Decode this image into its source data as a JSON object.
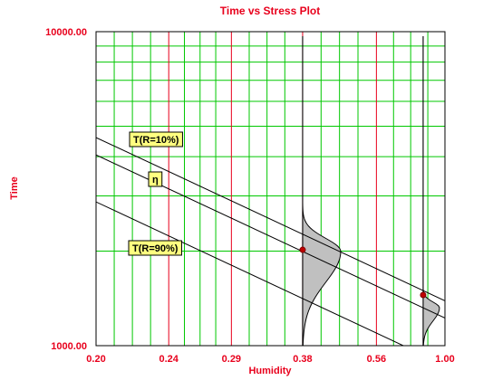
{
  "chart_data": {
    "type": "line",
    "title": "Time vs Stress Plot",
    "xlabel": "Humidity",
    "ylabel": "Time",
    "xscale": "reciprocal",
    "yscale": "log",
    "xlim": [
      0.2,
      1.0
    ],
    "ylim": [
      1000,
      10000
    ],
    "x_tick_labels": [
      "0.20",
      "0.24",
      "0.29",
      "0.38",
      "0.56",
      "1.00"
    ],
    "y_tick_labels": [
      "1000.00",
      "10000.00"
    ],
    "grid": true,
    "lines": [
      {
        "label": "T(R=10%)",
        "points": [
          [
            0.2,
            4600
          ],
          [
            1.0,
            1390
          ]
        ]
      },
      {
        "label": "η",
        "points": [
          [
            0.2,
            4050
          ],
          [
            1.0,
            1225
          ]
        ]
      },
      {
        "label": "T(R=90%)",
        "points": [
          [
            0.2,
            2870
          ],
          [
            1.0,
            867
          ]
        ]
      }
    ],
    "data_points": [
      {
        "x": 0.38,
        "y": 2020
      },
      {
        "x": 0.8,
        "y": 1450
      }
    ],
    "pdf_stress_levels": [
      0.38,
      0.8
    ],
    "colors": {
      "text": "#e8001c",
      "grid_major": "#00c800",
      "grid_tick": "#e8001c",
      "pdf_fill": "#c0c0c0",
      "annotation_fill": "#ffff80",
      "point": "#c00000"
    }
  }
}
